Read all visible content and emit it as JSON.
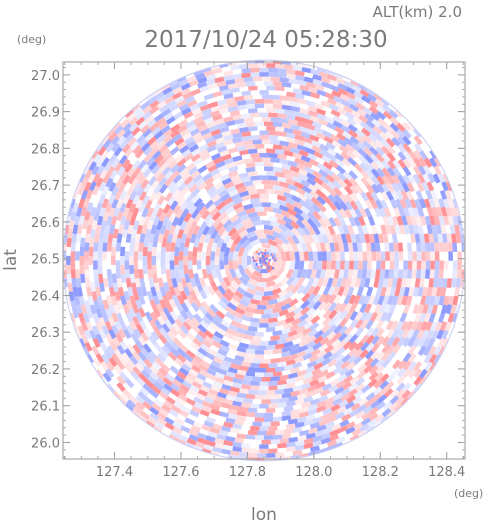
{
  "chart_data": {
    "type": "heatmap",
    "title": "2017/10/24 05:28:30",
    "subtitle": "ALT(km) 2.0",
    "xlabel": "lon",
    "ylabel": "lat",
    "x_unit": "(deg)",
    "y_unit": "(deg)",
    "xlim": [
      127.245,
      128.455
    ],
    "ylim": [
      25.955,
      27.035
    ],
    "x_ticks": [
      "127.4",
      "127.6",
      "127.8",
      "128.0",
      "128.2",
      "128.4"
    ],
    "y_ticks": [
      "26.0",
      "26.1",
      "26.2",
      "26.3",
      "26.4",
      "26.5",
      "26.6",
      "26.7",
      "26.8",
      "26.9",
      "27.0"
    ],
    "field": {
      "shape": "circle",
      "center": [
        127.85,
        26.495
      ],
      "radius_lon": 0.605,
      "radius_lat": 0.545,
      "colormap": [
        "#8d9bff",
        "#ffffff",
        "#ff8f93"
      ],
      "value_range": [
        -1,
        1
      ],
      "pattern": "radial-azimuthal speckle"
    },
    "grid": false
  }
}
